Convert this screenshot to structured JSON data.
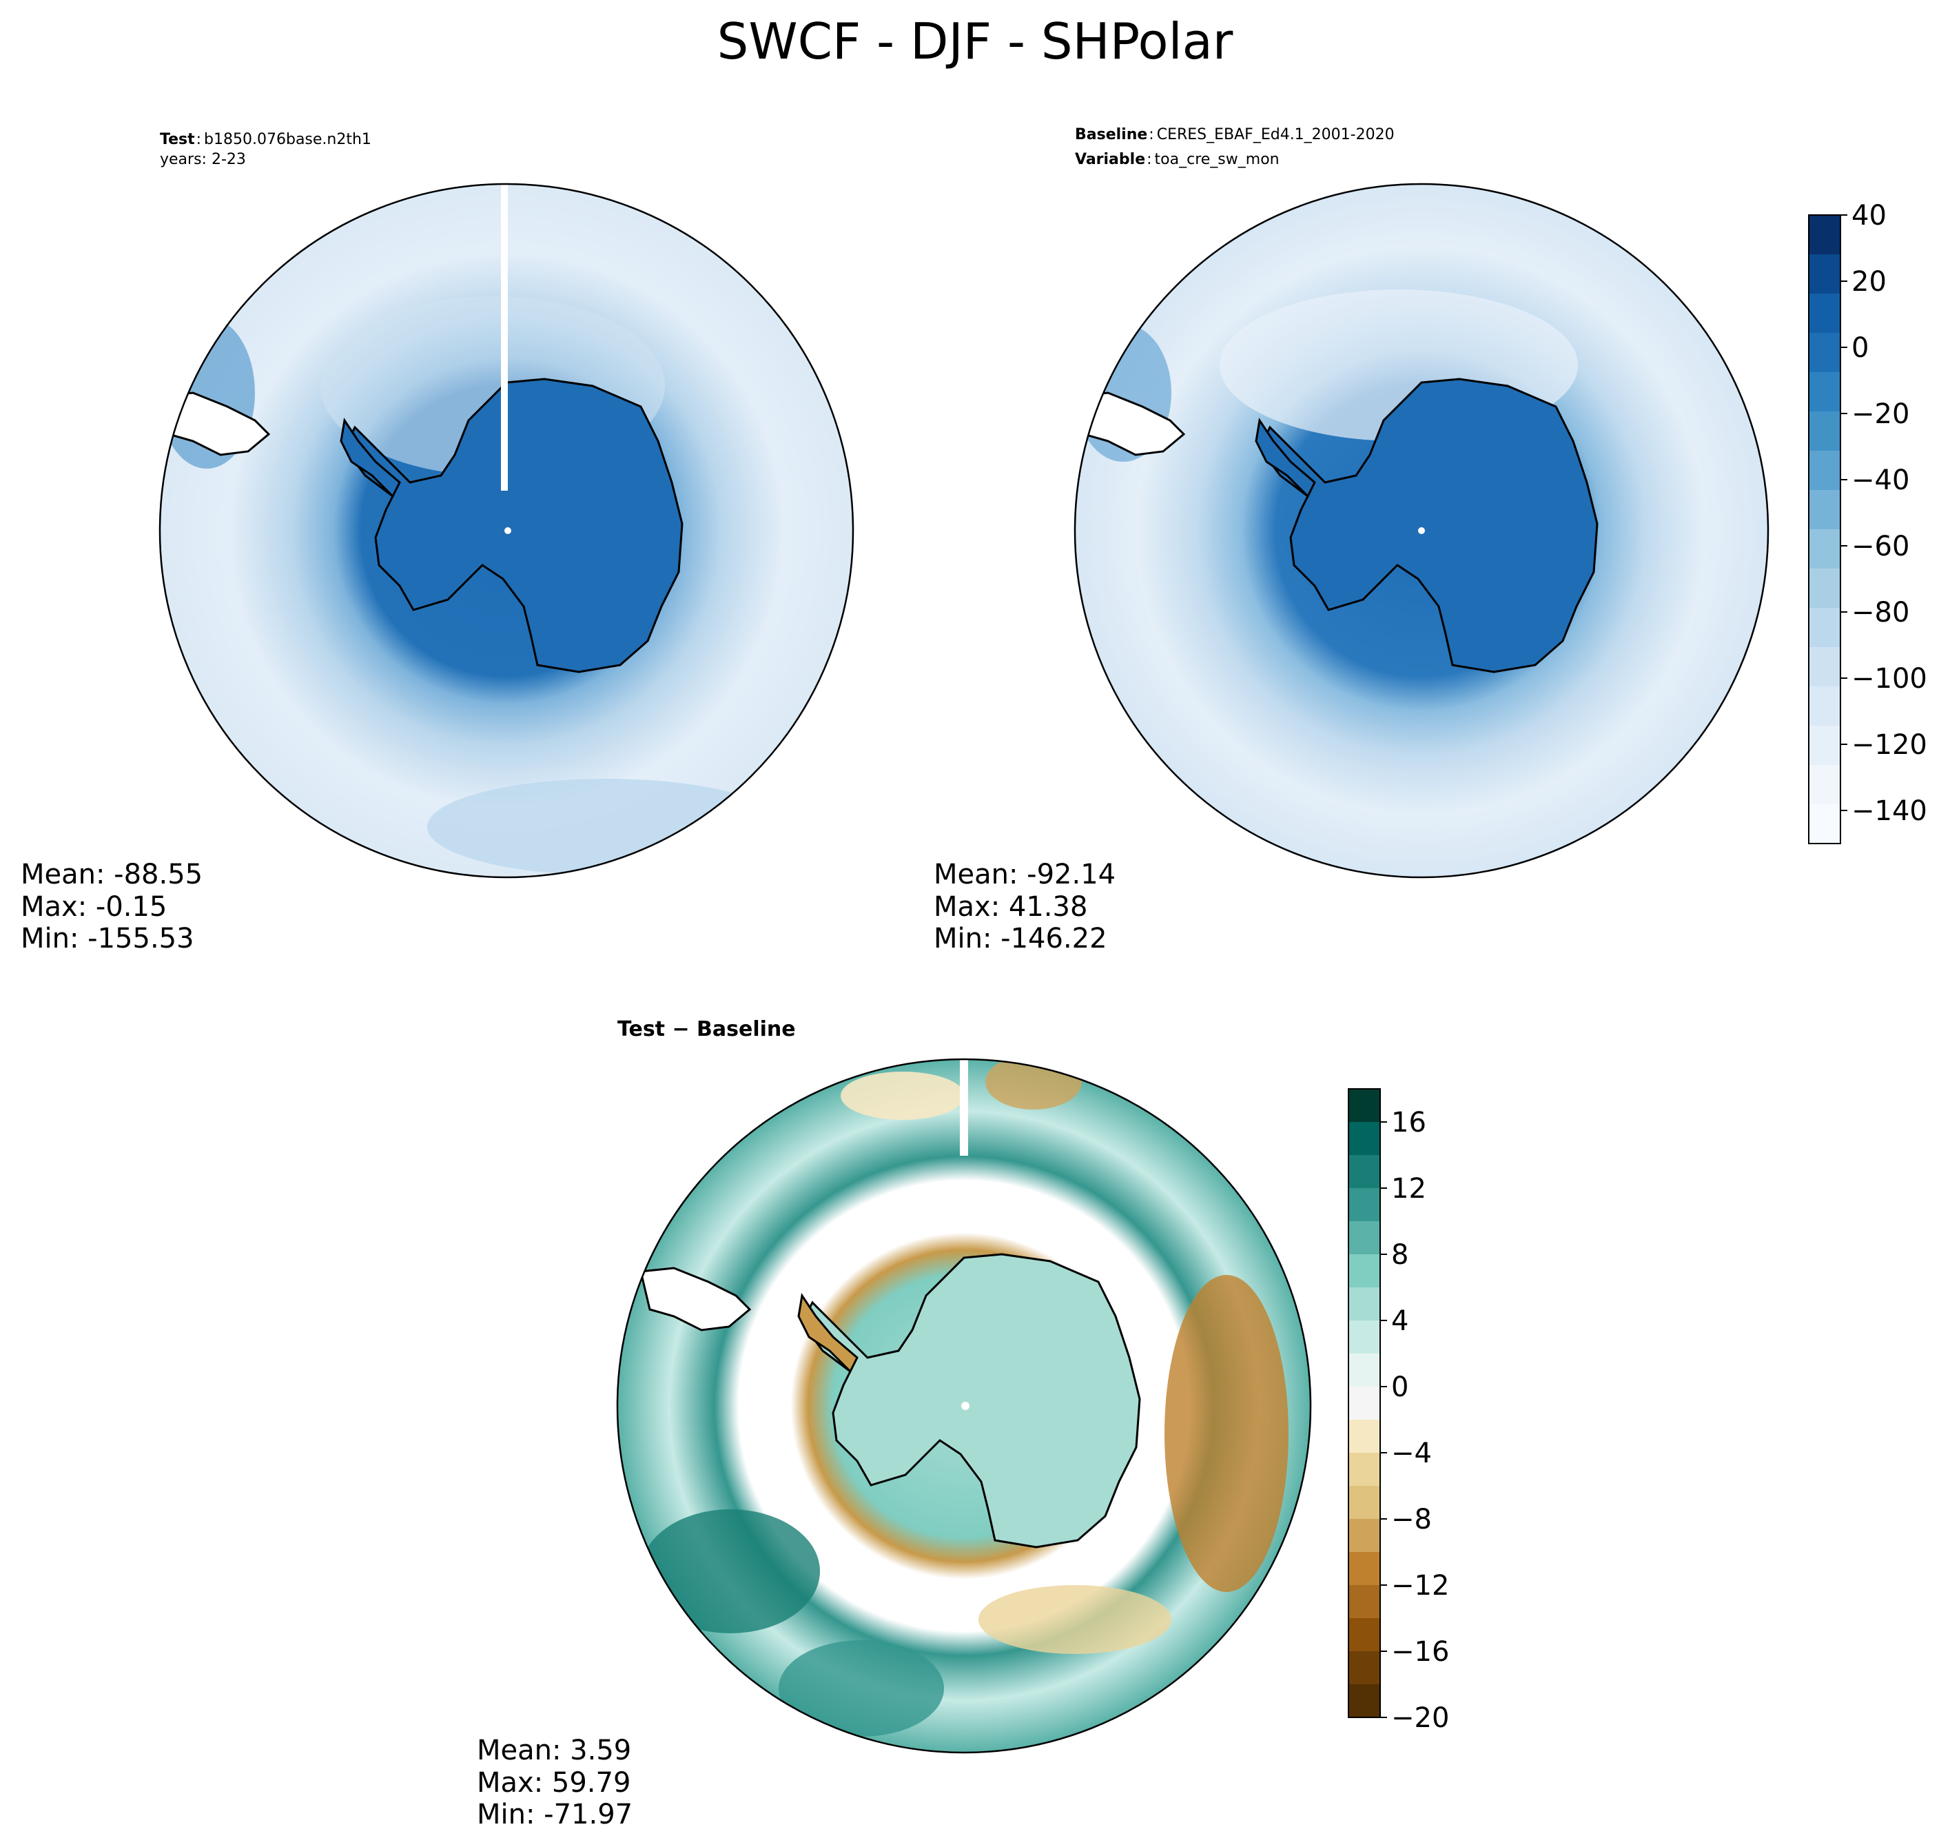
{
  "figure_title": "SWCF - DJF - SHPolar",
  "chart_data": [
    {
      "type": "heatmap",
      "projection": "south-polar stereographic",
      "panel": "test",
      "header": {
        "label": "Test",
        "value": "b1850.076base.n2th1",
        "line2": "years: 2-23"
      },
      "stats": {
        "mean": "Mean: -88.55",
        "max": "Max: -0.15",
        "min": "Min: -155.53"
      },
      "field_description": "shortwave cloud forcing; Antarctica ~0, ring of ~-60 to -90 around coast, ~-110 to -140 over Southern Ocean",
      "colormap": "Blues",
      "colorbar_shared_with": "baseline"
    },
    {
      "type": "heatmap",
      "projection": "south-polar stereographic",
      "panel": "baseline",
      "header": {
        "line1_label": "Baseline",
        "line1_value": "CERES_EBAF_Ed4.1_2001-2020",
        "line2_label": "Variable",
        "line2_value": "toa_cre_sw_mon"
      },
      "stats": {
        "mean": "Mean: -92.14",
        "max": "Max: 41.38",
        "min": "Min: -146.22"
      },
      "colorbar": {
        "range": [
          -150,
          40
        ],
        "ticks": [
          "40",
          "20",
          "0",
          "−20",
          "−40",
          "−60",
          "−80",
          "−100",
          "−120",
          "−140"
        ],
        "tick_values": [
          40,
          20,
          0,
          -20,
          -40,
          -60,
          -80,
          -100,
          -120,
          -140
        ],
        "colors": [
          "#08306b",
          "#0b4a8f",
          "#1360a8",
          "#1f6fb4",
          "#2f82c0",
          "#4292c6",
          "#5ca3d0",
          "#77b3d9",
          "#93c4df",
          "#a9cfe5",
          "#bcd8ec",
          "#cde1f1",
          "#dbe9f6",
          "#e6f0f9",
          "#f0f6fc",
          "#f7fbff"
        ]
      }
    },
    {
      "type": "heatmap",
      "projection": "south-polar stereographic",
      "panel": "difference",
      "header": {
        "label": "Test − Baseline"
      },
      "stats": {
        "mean": "Mean:  3.59",
        "max": "Max: 59.79",
        "min": "Min: -71.97"
      },
      "colorbar": {
        "range": [
          -20,
          18
        ],
        "ticks": [
          "16",
          "12",
          "8",
          "4",
          "0",
          "−4",
          "−8",
          "−12",
          "−16",
          "−20"
        ],
        "tick_values": [
          16,
          12,
          8,
          4,
          0,
          -4,
          -8,
          -12,
          -16,
          -20
        ],
        "colors": [
          "#003c30",
          "#01665e",
          "#197f76",
          "#35978f",
          "#5ab2a8",
          "#80cdc1",
          "#a7dcd3",
          "#c7eae5",
          "#e6f4f1",
          "#f5f5f5",
          "#f6e8c3",
          "#ebd49a",
          "#dfc27d",
          "#cfa45a",
          "#bf812d",
          "#a86a1e",
          "#8c510a",
          "#6f3f08",
          "#543005"
        ]
      }
    }
  ]
}
